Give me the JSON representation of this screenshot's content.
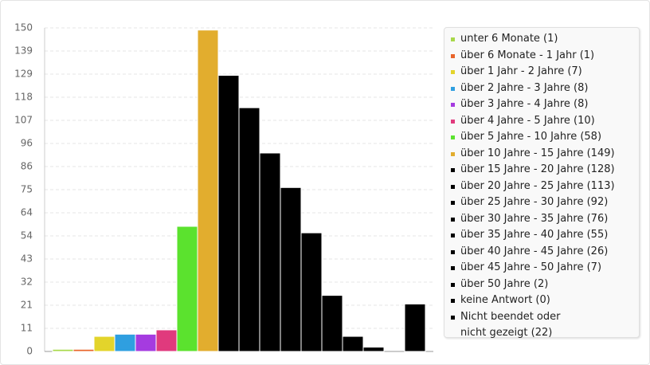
{
  "chart_data": {
    "type": "bar",
    "categories": [
      "unter 6 Monate (1)",
      "über 6 Monate - 1 Jahr (1)",
      "über 1 Jahr - 2 Jahre (7)",
      "über 2 Jahre - 3 Jahre (8)",
      "über 3 Jahre - 4 Jahre (8)",
      "über 4 Jahre - 5 Jahre (10)",
      "über 5 Jahre - 10 Jahre (58)",
      "über 10 Jahre - 15 Jahre (149)",
      "über 15 Jahre - 20 Jahre (128)",
      "über 20 Jahre - 25 Jahre (113)",
      "über 25 Jahre - 30 Jahre (92)",
      "über 30 Jahre - 35 Jahre (76)",
      "über 35 Jahre - 40 Jahre (55)",
      "über 40 Jahre - 45 Jahre (26)",
      "über 45 Jahre - 50 Jahre (7)",
      "über 50 Jahre (2)",
      "keine Antwort (0)",
      "Nicht beendet oder nicht gezeigt (22)"
    ],
    "values": [
      1,
      1,
      7,
      8,
      8,
      10,
      58,
      149,
      128,
      113,
      92,
      76,
      55,
      26,
      7,
      2,
      0,
      22
    ],
    "colors": [
      "#a8d84a",
      "#e8642a",
      "#e3d42b",
      "#2f9fe0",
      "#a53be0",
      "#e03a7d",
      "#5be22e",
      "#e2ad2e",
      "#000000",
      "#000000",
      "#000000",
      "#000000",
      "#000000",
      "#000000",
      "#000000",
      "#000000",
      "#000000",
      "#000000"
    ],
    "ylim": [
      0,
      150
    ],
    "yticks": [
      0,
      {
        "value": 10.714,
        "label": "11"
      },
      {
        "value": 21.429,
        "label": "21"
      },
      {
        "value": 32.143,
        "label": "32"
      },
      {
        "value": 42.857,
        "label": "43"
      },
      {
        "value": 53.571,
        "label": "54"
      },
      {
        "value": 64.286,
        "label": "64"
      },
      {
        "value": 75,
        "label": "75"
      },
      {
        "value": 85.714,
        "label": "86"
      },
      {
        "value": 96.429,
        "label": "96"
      },
      {
        "value": 107.143,
        "label": "107"
      },
      {
        "value": 117.857,
        "label": "118"
      },
      {
        "value": 128.571,
        "label": "129"
      },
      {
        "value": 139.286,
        "label": "139"
      },
      150
    ],
    "grid": true
  }
}
